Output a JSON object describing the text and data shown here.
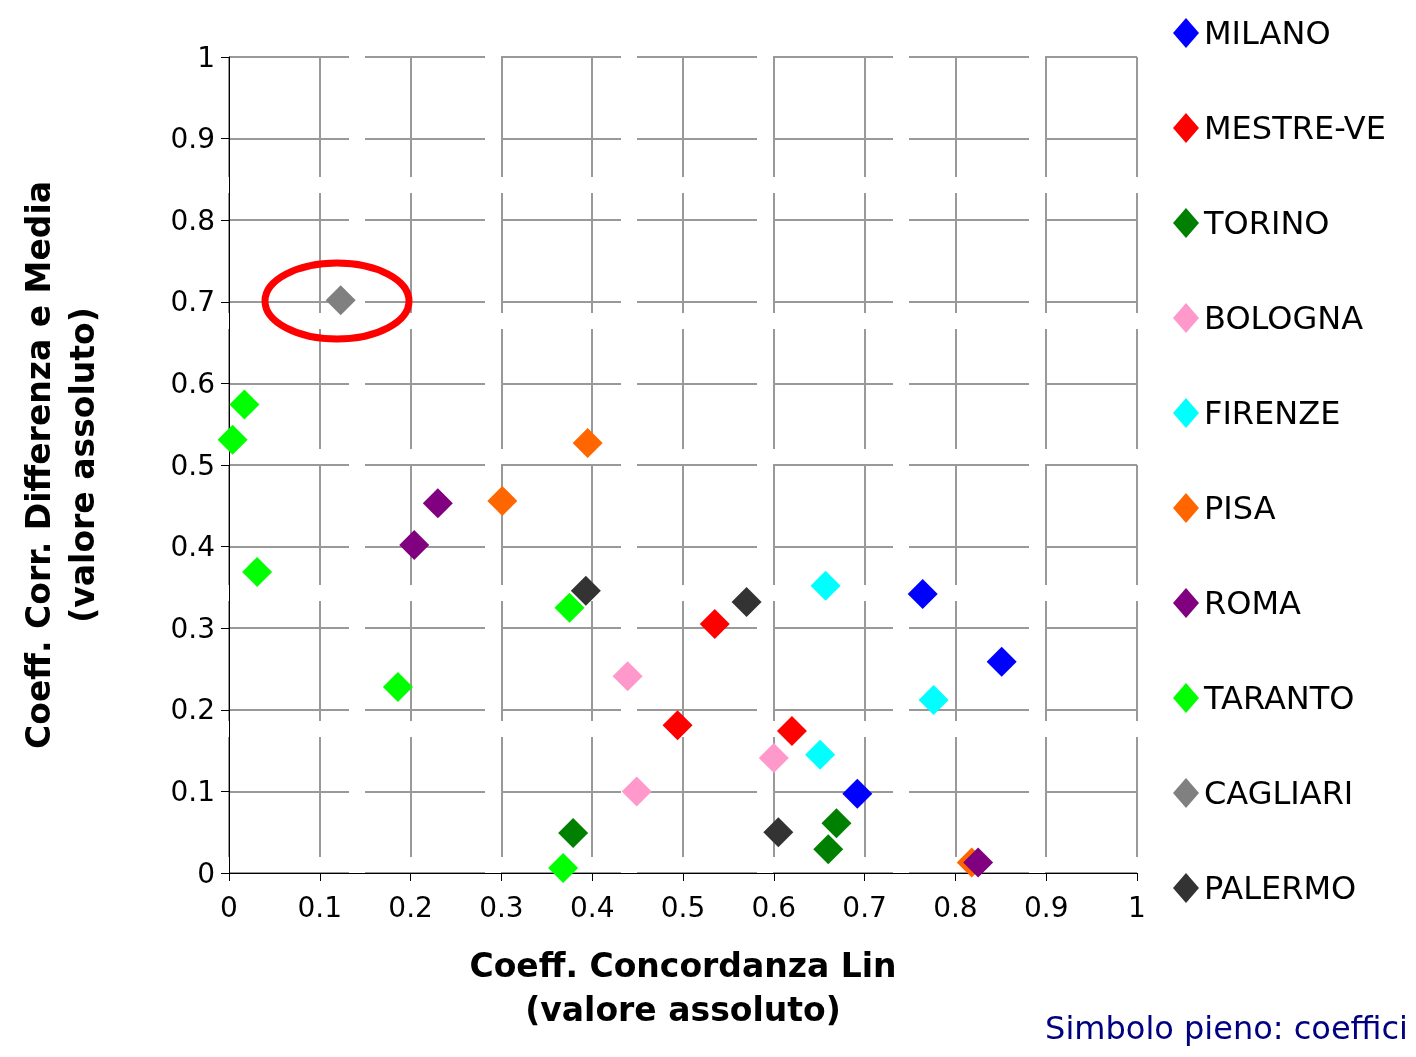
{
  "chart_data": {
    "type": "scatter",
    "xlabel": "Coeff. Concordanza Lin\n(valore assoluto)",
    "ylabel": "Coeff. Corr. Differenza e Media\n(valore assoluto)",
    "xlim": [
      0,
      1
    ],
    "ylim": [
      0,
      1
    ],
    "xticks": [
      0,
      0.1,
      0.2,
      0.3,
      0.4,
      0.5,
      0.6,
      0.7,
      0.8,
      0.9,
      1
    ],
    "yticks": [
      0,
      0.1,
      0.2,
      0.3,
      0.4,
      0.5,
      0.6,
      0.7,
      0.8,
      0.9,
      1
    ],
    "grid": true,
    "legend": "right",
    "marker": "diamond",
    "annotations": [
      "Simbolo pieno: coeffici"
    ],
    "series": [
      {
        "name": "MILANO",
        "color": "#0000ff",
        "x": [
          0.764,
          0.851,
          0.692
        ],
        "values": [
          0.342,
          0.259,
          0.097
        ]
      },
      {
        "name": "MESTRE-VE",
        "color": "#ff0000",
        "x": [
          0.535,
          0.494,
          0.62
        ],
        "values": [
          0.305,
          0.181,
          0.174
        ]
      },
      {
        "name": "TORINO",
        "color": "#008000",
        "x": [
          0.669,
          0.66,
          0.379
        ],
        "values": [
          0.061,
          0.029,
          0.049
        ]
      },
      {
        "name": "BOLOGNA",
        "color": "#ff99cc",
        "x": [
          0.439,
          0.449,
          0.6
        ],
        "values": [
          0.241,
          0.1,
          0.141
        ]
      },
      {
        "name": "FIRENZE",
        "color": "#00ffff",
        "x": [
          0.657,
          0.776,
          0.651
        ],
        "values": [
          0.352,
          0.212,
          0.145
        ]
      },
      {
        "name": "PISA",
        "color": "#ff6600",
        "x": [
          0.395,
          0.301,
          0.818
        ],
        "values": [
          0.527,
          0.456,
          0.013
        ]
      },
      {
        "name": "ROMA",
        "color": "#800080",
        "x": [
          0.23,
          0.204,
          0.825
        ],
        "values": [
          0.453,
          0.402,
          0.013
        ]
      },
      {
        "name": "TARANTO",
        "color": "#00ff00",
        "x": [
          0.017,
          0.004,
          0.031,
          0.375,
          0.186,
          0.368
        ],
        "values": [
          0.574,
          0.531,
          0.369,
          0.325,
          0.228,
          0.006
        ]
      },
      {
        "name": "CAGLIARI",
        "color": "#808080",
        "x": [
          0.123
        ],
        "values": [
          0.702
        ]
      },
      {
        "name": "PALERMO",
        "color": "#333333",
        "x": [
          0.393,
          0.57,
          0.605
        ],
        "values": [
          0.346,
          0.332,
          0.05
        ]
      }
    ]
  }
}
